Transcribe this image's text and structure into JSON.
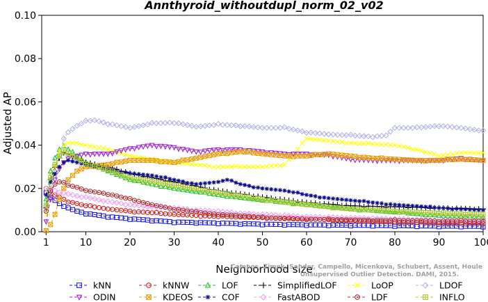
{
  "chart_data": {
    "type": "line",
    "title": "Annthyroid_withoutdupl_norm_02_v02",
    "xlabel": "Neighborhood size",
    "ylabel": "Adjusted AP",
    "xlim": [
      0,
      100
    ],
    "ylim": [
      0,
      0.1
    ],
    "xticks": [
      "1",
      "10",
      "20",
      "30",
      "40",
      "50",
      "60",
      "70",
      "80",
      "90",
      "100"
    ],
    "yticks": [
      "0.00",
      "0.02",
      "0.04",
      "0.06",
      "0.08",
      "0.10"
    ],
    "legend_position": "bottom",
    "grid": false,
    "watermark": [
      "Campos, Zimek, Sander, Campello, Micenkova, Schubert, Assent, Houle",
      "Unsupervised Outlier Detection. DAMI, 2015."
    ],
    "series": [
      {
        "name": "kNN",
        "color": "#1a1adb",
        "marker": "square",
        "dash": "4,3",
        "points": [
          [
            1,
            0.018
          ],
          [
            2,
            0.016
          ],
          [
            3,
            0.0145
          ],
          [
            4,
            0.013
          ],
          [
            5,
            0.012
          ],
          [
            6,
            0.011
          ],
          [
            8,
            0.0095
          ],
          [
            10,
            0.0085
          ],
          [
            15,
            0.007
          ],
          [
            20,
            0.006
          ],
          [
            30,
            0.0045
          ],
          [
            40,
            0.004
          ],
          [
            50,
            0.0035
          ],
          [
            60,
            0.0032
          ],
          [
            70,
            0.003
          ],
          [
            80,
            0.0028
          ],
          [
            90,
            0.0026
          ],
          [
            100,
            0.0025
          ]
        ]
      },
      {
        "name": "kNNW",
        "color": "#d42020",
        "marker": "circle",
        "dash": "4,3",
        "points": [
          [
            1,
            0.02
          ],
          [
            2,
            0.0185
          ],
          [
            3,
            0.017
          ],
          [
            4,
            0.016
          ],
          [
            5,
            0.015
          ],
          [
            6,
            0.014
          ],
          [
            8,
            0.013
          ],
          [
            10,
            0.012
          ],
          [
            15,
            0.0105
          ],
          [
            20,
            0.0095
          ],
          [
            30,
            0.008
          ],
          [
            40,
            0.007
          ],
          [
            50,
            0.0065
          ],
          [
            60,
            0.006
          ],
          [
            70,
            0.005
          ],
          [
            80,
            0.0045
          ],
          [
            90,
            0.004
          ],
          [
            100,
            0.0038
          ]
        ]
      },
      {
        "name": "LOF",
        "color": "#22c422",
        "marker": "triangle-up",
        "dash": "4,3",
        "points": [
          [
            1,
            0.015
          ],
          [
            2,
            0.028
          ],
          [
            3,
            0.034
          ],
          [
            4,
            0.038
          ],
          [
            5,
            0.0395
          ],
          [
            6,
            0.038
          ],
          [
            8,
            0.035
          ],
          [
            10,
            0.032
          ],
          [
            15,
            0.028
          ],
          [
            20,
            0.024
          ],
          [
            30,
            0.02
          ],
          [
            40,
            0.017
          ],
          [
            50,
            0.0145
          ],
          [
            60,
            0.0125
          ],
          [
            70,
            0.0105
          ],
          [
            80,
            0.009
          ],
          [
            90,
            0.0075
          ],
          [
            100,
            0.0068
          ]
        ]
      },
      {
        "name": "SimplifiedLOF",
        "color": "#000000",
        "marker": "plus",
        "dash": "4,3",
        "points": [
          [
            1,
            0.011
          ],
          [
            2,
            0.024
          ],
          [
            3,
            0.03
          ],
          [
            4,
            0.034
          ],
          [
            5,
            0.0365
          ],
          [
            6,
            0.036
          ],
          [
            8,
            0.034
          ],
          [
            10,
            0.032
          ],
          [
            15,
            0.03
          ],
          [
            20,
            0.027
          ],
          [
            30,
            0.023
          ],
          [
            40,
            0.019
          ],
          [
            50,
            0.016
          ],
          [
            60,
            0.0135
          ],
          [
            70,
            0.012
          ],
          [
            80,
            0.0115
          ],
          [
            90,
            0.011
          ],
          [
            100,
            0.0105
          ]
        ]
      },
      {
        "name": "LoOP",
        "color": "#ffff00",
        "marker": "x",
        "dash": "4,3",
        "points": [
          [
            1,
            0.008
          ],
          [
            2,
            0.02
          ],
          [
            3,
            0.03
          ],
          [
            4,
            0.037
          ],
          [
            5,
            0.04
          ],
          [
            6,
            0.041
          ],
          [
            8,
            0.041
          ],
          [
            10,
            0.04
          ],
          [
            15,
            0.038
          ],
          [
            20,
            0.035
          ],
          [
            30,
            0.032
          ],
          [
            40,
            0.03
          ],
          [
            50,
            0.03
          ],
          [
            55,
            0.031
          ],
          [
            60,
            0.043
          ],
          [
            70,
            0.041
          ],
          [
            80,
            0.04
          ],
          [
            85,
            0.038
          ],
          [
            90,
            0.035
          ],
          [
            95,
            0.0365
          ],
          [
            100,
            0.0365
          ]
        ]
      },
      {
        "name": "LDOF",
        "color": "#b4b4ea",
        "marker": "diamond",
        "dash": "4,3",
        "points": [
          [
            1,
            0.012
          ],
          [
            2,
            0.02
          ],
          [
            3,
            0.028
          ],
          [
            4,
            0.035
          ],
          [
            5,
            0.043
          ],
          [
            6,
            0.046
          ],
          [
            8,
            0.049
          ],
          [
            10,
            0.051
          ],
          [
            12,
            0.0515
          ],
          [
            15,
            0.05
          ],
          [
            20,
            0.048
          ],
          [
            25,
            0.05
          ],
          [
            30,
            0.0505
          ],
          [
            35,
            0.0485
          ],
          [
            40,
            0.0495
          ],
          [
            45,
            0.049
          ],
          [
            50,
            0.048
          ],
          [
            55,
            0.048
          ],
          [
            60,
            0.046
          ],
          [
            65,
            0.045
          ],
          [
            70,
            0.0445
          ],
          [
            75,
            0.044
          ],
          [
            78,
            0.0445
          ],
          [
            80,
            0.048
          ],
          [
            85,
            0.048
          ],
          [
            90,
            0.049
          ],
          [
            95,
            0.048
          ],
          [
            100,
            0.0465
          ]
        ]
      },
      {
        "name": "ODIN",
        "color": "#a020d4",
        "marker": "triangle-down",
        "dash": "4,3",
        "points": [
          [
            1,
            0.005
          ],
          [
            2,
            0.015
          ],
          [
            3,
            0.024
          ],
          [
            4,
            0.029
          ],
          [
            5,
            0.032
          ],
          [
            6,
            0.034
          ],
          [
            8,
            0.035
          ],
          [
            10,
            0.036
          ],
          [
            15,
            0.036
          ],
          [
            20,
            0.0385
          ],
          [
            25,
            0.04
          ],
          [
            30,
            0.039
          ],
          [
            35,
            0.037
          ],
          [
            40,
            0.038
          ],
          [
            45,
            0.038
          ],
          [
            50,
            0.037
          ],
          [
            55,
            0.036
          ],
          [
            60,
            0.036
          ],
          [
            65,
            0.0355
          ],
          [
            70,
            0.0335
          ],
          [
            75,
            0.033
          ],
          [
            80,
            0.033
          ],
          [
            85,
            0.033
          ],
          [
            90,
            0.033
          ],
          [
            95,
            0.034
          ],
          [
            100,
            0.033
          ]
        ]
      },
      {
        "name": "KDEOS",
        "color": "#e8a010",
        "marker": "square-x",
        "dash": "4,3",
        "points": [
          [
            1,
            0.0005
          ],
          [
            2,
            0.003
          ],
          [
            3,
            0.008
          ],
          [
            4,
            0.015
          ],
          [
            5,
            0.02
          ],
          [
            6,
            0.024
          ],
          [
            8,
            0.028
          ],
          [
            10,
            0.03
          ],
          [
            15,
            0.031
          ],
          [
            20,
            0.033
          ],
          [
            25,
            0.033
          ],
          [
            30,
            0.032
          ],
          [
            35,
            0.034
          ],
          [
            40,
            0.036
          ],
          [
            45,
            0.037
          ],
          [
            50,
            0.036
          ],
          [
            55,
            0.035
          ],
          [
            60,
            0.035
          ],
          [
            65,
            0.036
          ],
          [
            70,
            0.035
          ],
          [
            75,
            0.034
          ],
          [
            80,
            0.0335
          ],
          [
            85,
            0.033
          ],
          [
            90,
            0.033
          ],
          [
            95,
            0.0335
          ],
          [
            100,
            0.033
          ]
        ]
      },
      {
        "name": "COF",
        "color": "#0a0a8c",
        "marker": "asterisk",
        "dash": "4,3",
        "points": [
          [
            1,
            0.017
          ],
          [
            2,
            0.023
          ],
          [
            3,
            0.027
          ],
          [
            4,
            0.03
          ],
          [
            5,
            0.032
          ],
          [
            6,
            0.033
          ],
          [
            8,
            0.032
          ],
          [
            10,
            0.031
          ],
          [
            15,
            0.029
          ],
          [
            20,
            0.027
          ],
          [
            25,
            0.026
          ],
          [
            30,
            0.024
          ],
          [
            35,
            0.022
          ],
          [
            40,
            0.023
          ],
          [
            42,
            0.024
          ],
          [
            45,
            0.022
          ],
          [
            50,
            0.02
          ],
          [
            55,
            0.019
          ],
          [
            60,
            0.017
          ],
          [
            65,
            0.0155
          ],
          [
            70,
            0.0145
          ],
          [
            75,
            0.0135
          ],
          [
            80,
            0.0125
          ],
          [
            85,
            0.0118
          ],
          [
            90,
            0.011
          ],
          [
            95,
            0.0105
          ],
          [
            100,
            0.01
          ]
        ]
      },
      {
        "name": "FastABOD",
        "color": "#f0a0f0",
        "marker": "diamond",
        "dash": "4,3",
        "points": [
          [
            1,
            0.02
          ],
          [
            2,
            0.0195
          ],
          [
            3,
            0.019
          ],
          [
            4,
            0.0185
          ],
          [
            5,
            0.018
          ],
          [
            6,
            0.0175
          ],
          [
            8,
            0.0165
          ],
          [
            10,
            0.016
          ],
          [
            15,
            0.014
          ],
          [
            20,
            0.0125
          ],
          [
            25,
            0.0115
          ],
          [
            30,
            0.011
          ],
          [
            35,
            0.01
          ],
          [
            40,
            0.0095
          ],
          [
            45,
            0.0085
          ],
          [
            50,
            0.008
          ],
          [
            55,
            0.0075
          ],
          [
            60,
            0.007
          ],
          [
            70,
            0.0065
          ],
          [
            80,
            0.006
          ],
          [
            90,
            0.0055
          ],
          [
            100,
            0.0055
          ]
        ]
      },
      {
        "name": "LDF",
        "color": "#b03030",
        "marker": "circle-dot",
        "dash": "4,3",
        "points": [
          [
            1,
            0.0095
          ],
          [
            2,
            0.019
          ],
          [
            3,
            0.022
          ],
          [
            4,
            0.023
          ],
          [
            5,
            0.0225
          ],
          [
            6,
            0.0215
          ],
          [
            8,
            0.0205
          ],
          [
            10,
            0.019
          ],
          [
            15,
            0.0175
          ],
          [
            20,
            0.015
          ],
          [
            25,
            0.0125
          ],
          [
            30,
            0.0105
          ],
          [
            35,
            0.009
          ],
          [
            40,
            0.008
          ],
          [
            45,
            0.0075
          ],
          [
            50,
            0.0065
          ],
          [
            55,
            0.006
          ],
          [
            60,
            0.0058
          ],
          [
            70,
            0.0055
          ],
          [
            80,
            0.0052
          ],
          [
            90,
            0.005
          ],
          [
            100,
            0.0048
          ]
        ]
      },
      {
        "name": "INFLO",
        "color": "#a8c830",
        "marker": "square-plus",
        "dash": "4,3",
        "points": [
          [
            1,
            0.012
          ],
          [
            2,
            0.025
          ],
          [
            3,
            0.031
          ],
          [
            4,
            0.035
          ],
          [
            5,
            0.037
          ],
          [
            6,
            0.0365
          ],
          [
            8,
            0.034
          ],
          [
            10,
            0.0315
          ],
          [
            15,
            0.0285
          ],
          [
            20,
            0.025
          ],
          [
            30,
            0.0215
          ],
          [
            40,
            0.018
          ],
          [
            50,
            0.015
          ],
          [
            60,
            0.0125
          ],
          [
            70,
            0.0105
          ],
          [
            80,
            0.0095
          ],
          [
            90,
            0.0085
          ],
          [
            100,
            0.008
          ]
        ]
      }
    ]
  }
}
